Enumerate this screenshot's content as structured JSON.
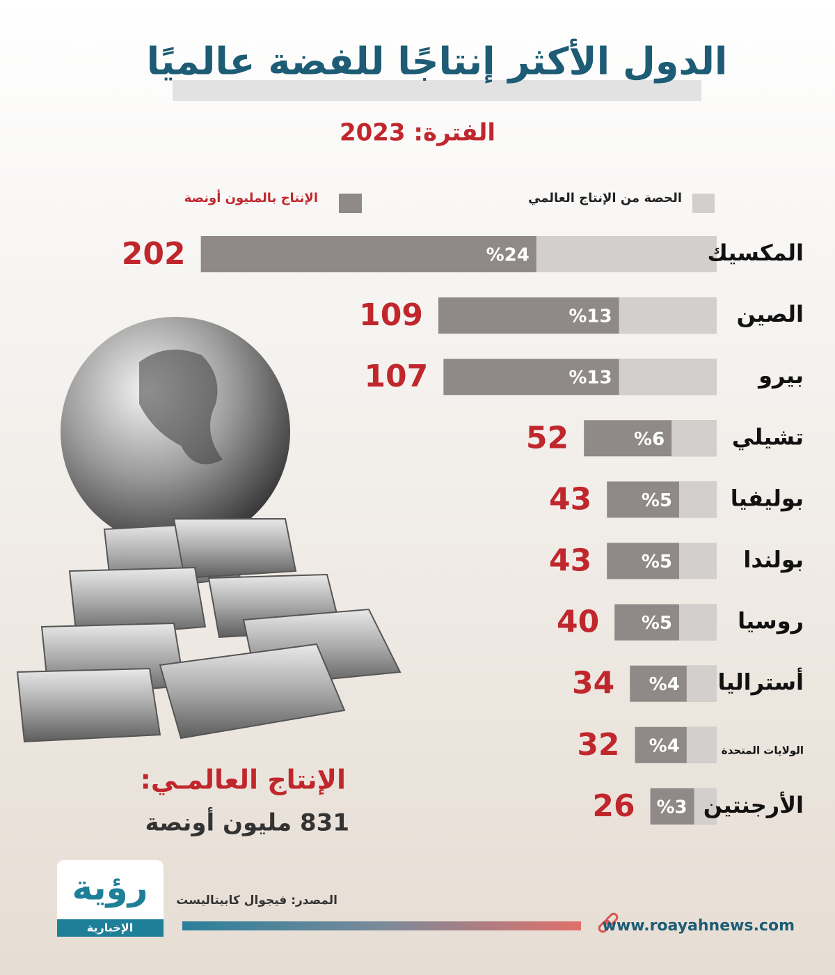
{
  "chart_data": {
    "type": "bar",
    "orientation": "horizontal",
    "title": "الدول الأكثر إنتاجًا للفضة عالميًا",
    "subtitle": "الفترة: 2023",
    "categories": [
      "المكسيك",
      "الصين",
      "بيرو",
      "تشيلي",
      "بوليفيا",
      "بولندا",
      "روسيا",
      "أستراليا",
      "الولايات المتحدة",
      "الأرجنتين"
    ],
    "series": [
      {
        "name": "الإنتاج بالمليون أونصة",
        "color": "#8f8a88",
        "values": [
          202,
          109,
          107,
          52,
          43,
          43,
          40,
          34,
          32,
          26
        ]
      },
      {
        "name": "الحصة من الإنتاج العالمي",
        "color": "#d3cfcd",
        "values": [
          24,
          13,
          13,
          6,
          5,
          5,
          5,
          4,
          4,
          3
        ],
        "value_labels": [
          "%24",
          "%13",
          "%13",
          "%6",
          "%5",
          "%5",
          "%5",
          "%4",
          "%4",
          "%3"
        ]
      }
    ]
  },
  "total": {
    "label": "الإنتاج العالمـي:",
    "value": "831 مليون أونصة"
  },
  "source": "المصدر: فيجوال كابيتاليست",
  "website": "www.roayahnews.com",
  "logo": {
    "name": "رؤية",
    "tagline": "الإخبارية"
  }
}
